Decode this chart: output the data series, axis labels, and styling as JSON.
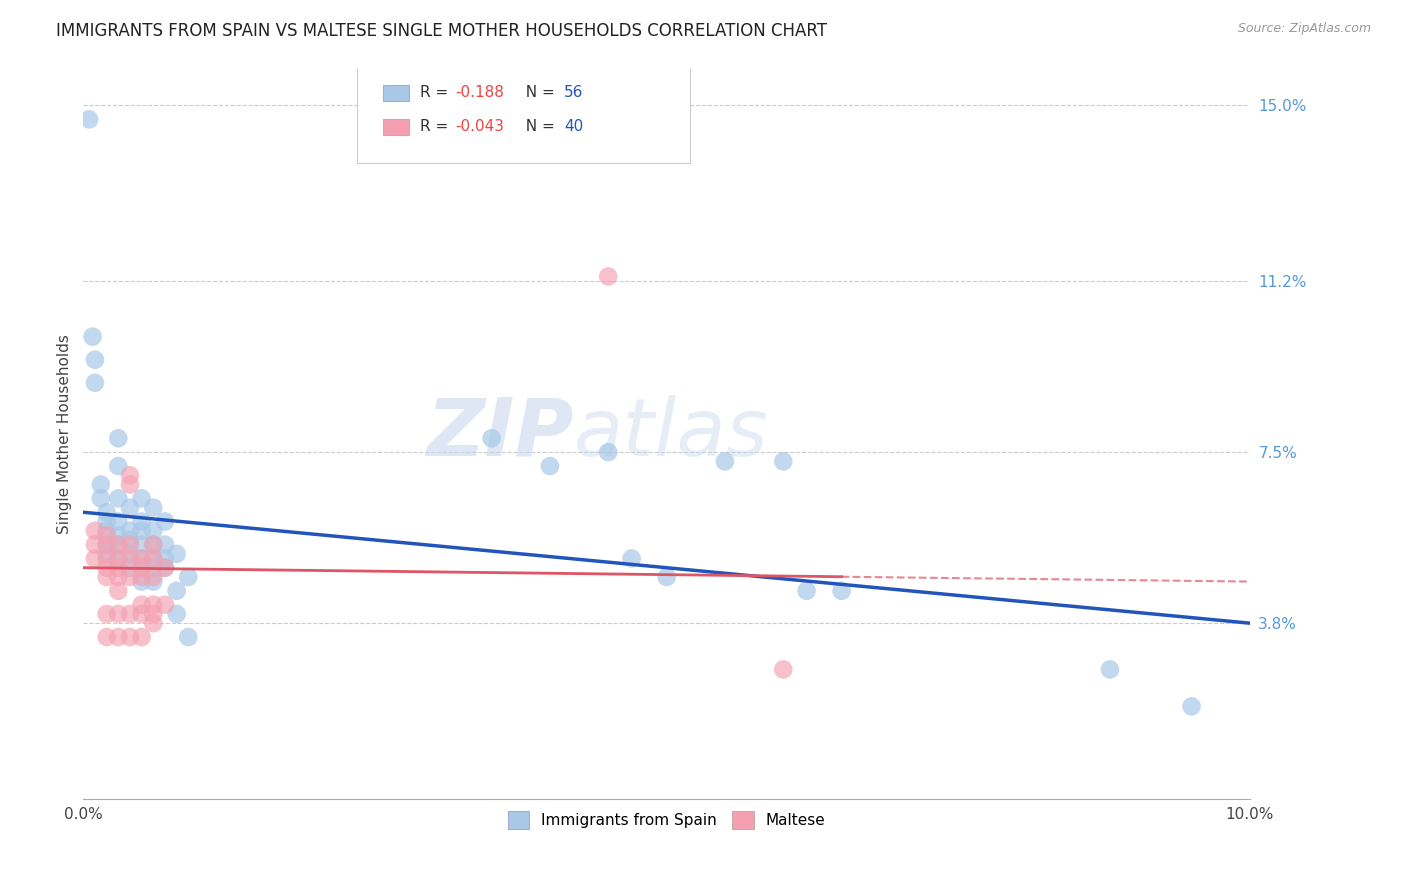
{
  "title": "IMMIGRANTS FROM SPAIN VS MALTESE SINGLE MOTHER HOUSEHOLDS CORRELATION CHART",
  "source": "Source: ZipAtlas.com",
  "ylabel": "Single Mother Households",
  "xlim": [
    0.0,
    0.1
  ],
  "ylim": [
    0.0,
    0.158
  ],
  "ytick_labels_right": [
    "15.0%",
    "11.2%",
    "7.5%",
    "3.8%"
  ],
  "ytick_vals_right": [
    0.15,
    0.112,
    0.075,
    0.038
  ],
  "watermark_zip": "ZIP",
  "watermark_atlas": "atlas",
  "blue_color": "#a8c8e8",
  "pink_color": "#f4a0b0",
  "blue_line_color": "#2255bb",
  "pink_line_color": "#dd5566",
  "scatter_blue": [
    [
      0.0005,
      0.147
    ],
    [
      0.0008,
      0.1
    ],
    [
      0.001,
      0.095
    ],
    [
      0.001,
      0.09
    ],
    [
      0.0015,
      0.068
    ],
    [
      0.0015,
      0.065
    ],
    [
      0.002,
      0.062
    ],
    [
      0.002,
      0.06
    ],
    [
      0.002,
      0.058
    ],
    [
      0.002,
      0.055
    ],
    [
      0.002,
      0.053
    ],
    [
      0.003,
      0.078
    ],
    [
      0.003,
      0.072
    ],
    [
      0.003,
      0.065
    ],
    [
      0.003,
      0.06
    ],
    [
      0.003,
      0.057
    ],
    [
      0.003,
      0.055
    ],
    [
      0.003,
      0.052
    ],
    [
      0.004,
      0.063
    ],
    [
      0.004,
      0.058
    ],
    [
      0.004,
      0.056
    ],
    [
      0.004,
      0.053
    ],
    [
      0.004,
      0.05
    ],
    [
      0.005,
      0.065
    ],
    [
      0.005,
      0.06
    ],
    [
      0.005,
      0.058
    ],
    [
      0.005,
      0.055
    ],
    [
      0.005,
      0.052
    ],
    [
      0.005,
      0.05
    ],
    [
      0.005,
      0.047
    ],
    [
      0.006,
      0.063
    ],
    [
      0.006,
      0.058
    ],
    [
      0.006,
      0.055
    ],
    [
      0.006,
      0.052
    ],
    [
      0.006,
      0.05
    ],
    [
      0.006,
      0.047
    ],
    [
      0.007,
      0.06
    ],
    [
      0.007,
      0.055
    ],
    [
      0.007,
      0.052
    ],
    [
      0.007,
      0.05
    ],
    [
      0.008,
      0.053
    ],
    [
      0.008,
      0.045
    ],
    [
      0.008,
      0.04
    ],
    [
      0.009,
      0.048
    ],
    [
      0.009,
      0.035
    ],
    [
      0.035,
      0.078
    ],
    [
      0.04,
      0.072
    ],
    [
      0.045,
      0.075
    ],
    [
      0.047,
      0.052
    ],
    [
      0.05,
      0.048
    ],
    [
      0.055,
      0.073
    ],
    [
      0.06,
      0.073
    ],
    [
      0.062,
      0.045
    ],
    [
      0.065,
      0.045
    ],
    [
      0.088,
      0.028
    ],
    [
      0.095,
      0.02
    ]
  ],
  "scatter_pink": [
    [
      0.001,
      0.058
    ],
    [
      0.001,
      0.055
    ],
    [
      0.001,
      0.052
    ],
    [
      0.002,
      0.057
    ],
    [
      0.002,
      0.055
    ],
    [
      0.002,
      0.052
    ],
    [
      0.002,
      0.05
    ],
    [
      0.002,
      0.048
    ],
    [
      0.002,
      0.04
    ],
    [
      0.002,
      0.035
    ],
    [
      0.003,
      0.055
    ],
    [
      0.003,
      0.052
    ],
    [
      0.003,
      0.05
    ],
    [
      0.003,
      0.048
    ],
    [
      0.003,
      0.045
    ],
    [
      0.003,
      0.04
    ],
    [
      0.003,
      0.035
    ],
    [
      0.004,
      0.07
    ],
    [
      0.004,
      0.068
    ],
    [
      0.004,
      0.055
    ],
    [
      0.004,
      0.052
    ],
    [
      0.004,
      0.048
    ],
    [
      0.004,
      0.04
    ],
    [
      0.004,
      0.035
    ],
    [
      0.005,
      0.052
    ],
    [
      0.005,
      0.05
    ],
    [
      0.005,
      0.048
    ],
    [
      0.005,
      0.042
    ],
    [
      0.005,
      0.04
    ],
    [
      0.005,
      0.035
    ],
    [
      0.006,
      0.055
    ],
    [
      0.006,
      0.052
    ],
    [
      0.006,
      0.048
    ],
    [
      0.006,
      0.042
    ],
    [
      0.006,
      0.04
    ],
    [
      0.006,
      0.038
    ],
    [
      0.007,
      0.05
    ],
    [
      0.007,
      0.042
    ],
    [
      0.045,
      0.113
    ],
    [
      0.06,
      0.028
    ]
  ],
  "blue_trend_x": [
    0.0,
    0.1
  ],
  "blue_trend_y": [
    0.062,
    0.038
  ],
  "pink_trend_x": [
    0.0,
    0.1
  ],
  "pink_trend_y": [
    0.05,
    0.047
  ],
  "background_color": "#ffffff",
  "grid_color": "#cccccc",
  "title_fontsize": 12,
  "axis_label_fontsize": 11,
  "tick_fontsize": 11
}
